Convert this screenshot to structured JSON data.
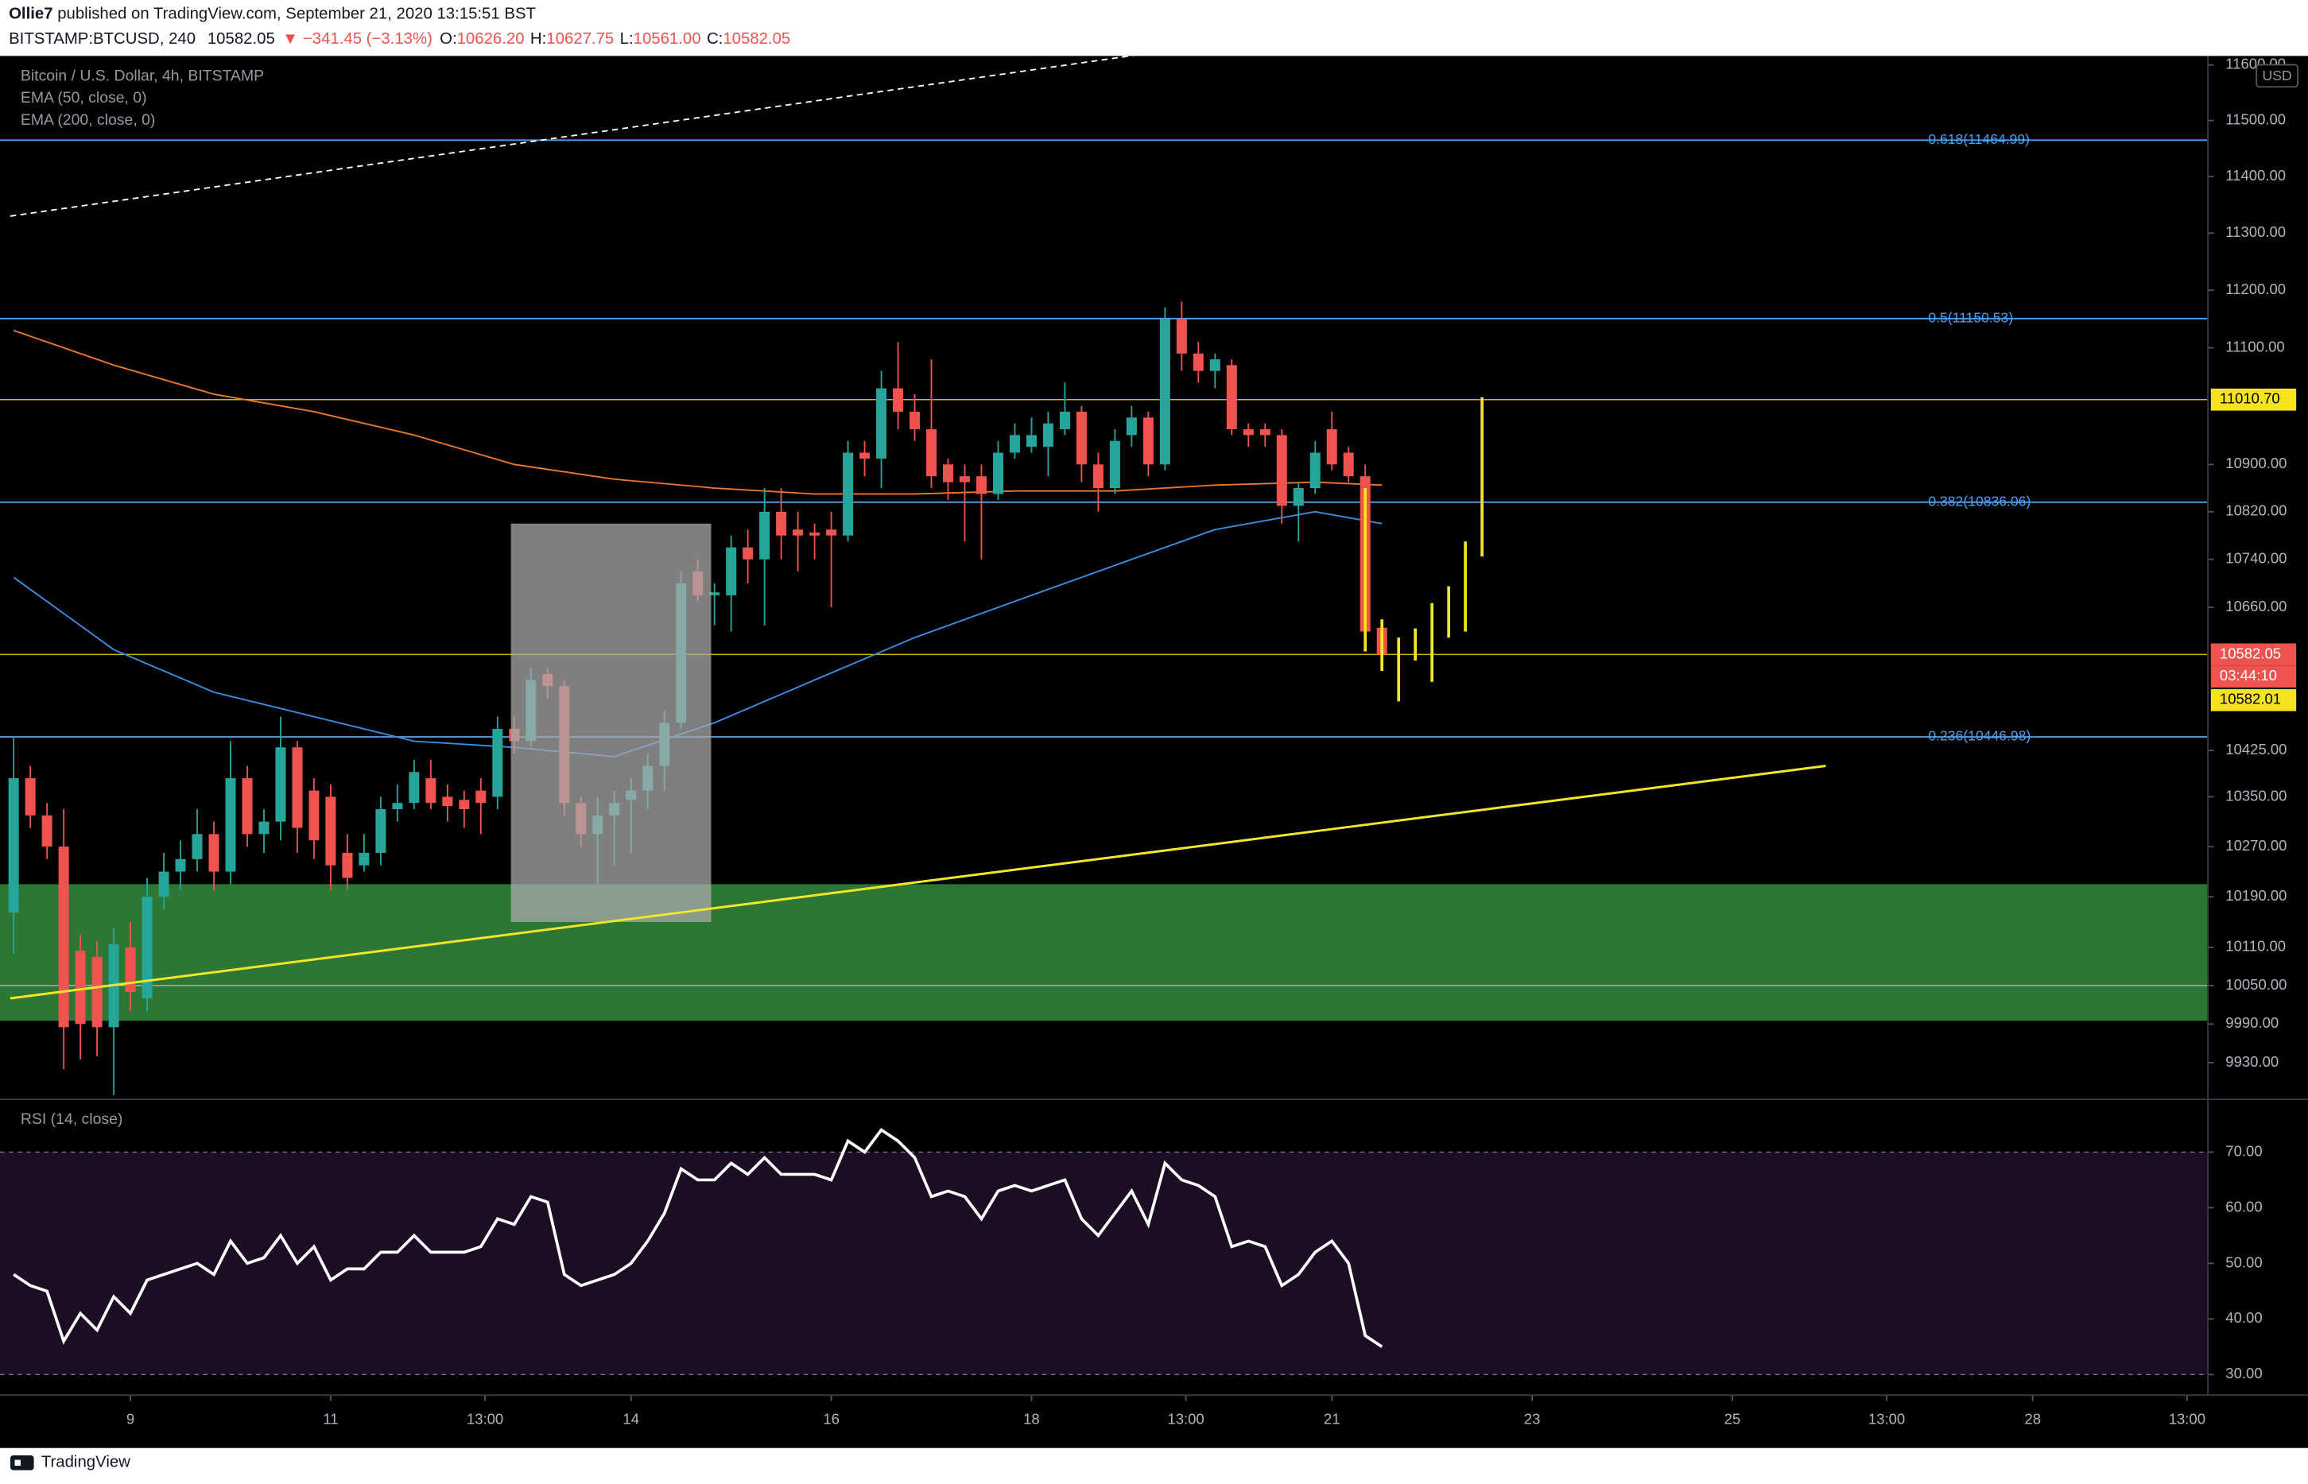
{
  "header": {
    "author": "Ollie7",
    "published": " published on TradingView.com, September 21, 2020 13:15:51 BST",
    "symbol": "BITSTAMP:BTCUSD, 240",
    "last": "10582.05",
    "change": "▼ −341.45 (−3.13%)",
    "ohlc": [
      {
        "k": "O:",
        "v": "10626.20"
      },
      {
        "k": "H:",
        "v": "10627.75"
      },
      {
        "k": "L:",
        "v": "10561.00"
      },
      {
        "k": "C:",
        "v": "10582.05"
      }
    ]
  },
  "footer": "TradingView",
  "chart_data": {
    "type": "candlestick",
    "title": "Bitcoin / U.S. Dollar, 4h, BITSTAMP",
    "currency": "USD",
    "log_scale": true,
    "up_color": "#26a69a",
    "down_color": "#ef5350",
    "x": [
      -7,
      -6,
      -5,
      -4,
      -3,
      -2,
      -1,
      0,
      1,
      2,
      3,
      4,
      5,
      6,
      7,
      8,
      9,
      10,
      11,
      12,
      13,
      14,
      15,
      16,
      17,
      18,
      19,
      20,
      21,
      22,
      23,
      24,
      25,
      26,
      27,
      28,
      29,
      30,
      31,
      32,
      33,
      34,
      35,
      36,
      37,
      38,
      39,
      40,
      41,
      42,
      43,
      44,
      45,
      46,
      47,
      48,
      49,
      50,
      51,
      52,
      53,
      54,
      55,
      56,
      57,
      58,
      59,
      60,
      61,
      62,
      63,
      64,
      65,
      66,
      67,
      68,
      69,
      70,
      71,
      72,
      73,
      74,
      75
    ],
    "open": [
      10165,
      10380,
      10320,
      10270,
      10105,
      10095,
      9985,
      10110,
      10030,
      10190,
      10230,
      10250,
      10290,
      10230,
      10380,
      10290,
      10310,
      10430,
      10360,
      10350,
      10260,
      10240,
      10260,
      10330,
      10340,
      10380,
      10350,
      10345,
      10360,
      10350,
      10460,
      10440,
      10550,
      10530,
      10340,
      10290,
      10320,
      10345,
      10360,
      10400,
      10470,
      10720,
      10680,
      10680,
      10760,
      10740,
      10820,
      10790,
      10785,
      10790,
      10780,
      10920,
      10910,
      11030,
      10990,
      10960,
      10900,
      10880,
      10880,
      10850,
      10920,
      10930,
      10930,
      10960,
      10990,
      10900,
      10860,
      10950,
      10980,
      10900,
      11150,
      11090,
      11060,
      11070,
      10960,
      10960,
      10950,
      10830,
      10860,
      10960,
      10920,
      10880,
      10626.2
    ],
    "high": [
      10447,
      10400,
      10340,
      10330,
      10130,
      10120,
      10140,
      10150,
      10220,
      10260,
      10280,
      10330,
      10310,
      10440,
      10400,
      10330,
      10480,
      10440,
      10380,
      10370,
      10290,
      10290,
      10350,
      10370,
      10410,
      10410,
      10370,
      10360,
      10380,
      10480,
      10480,
      10560,
      10560,
      10540,
      10350,
      10350,
      10360,
      10380,
      10420,
      10490,
      10720,
      10740,
      10700,
      10780,
      10790,
      10860,
      10860,
      10820,
      10800,
      10820,
      10940,
      10940,
      11060,
      11110,
      11020,
      11080,
      10910,
      10900,
      10900,
      10940,
      10970,
      10980,
      10990,
      11040,
      11000,
      10920,
      10960,
      11000,
      10990,
      11170,
      11180,
      11110,
      11090,
      11080,
      10970,
      10970,
      10960,
      10870,
      10940,
      10990,
      10930,
      10900,
      10627.75
    ],
    "low": [
      10100,
      10300,
      10250,
      9920,
      9935,
      9940,
      9880,
      10010,
      10010,
      10170,
      10200,
      10230,
      10200,
      10210,
      10270,
      10260,
      10280,
      10260,
      10250,
      10200,
      10200,
      10230,
      10240,
      10310,
      10330,
      10330,
      10310,
      10300,
      10290,
      10330,
      10420,
      10430,
      10510,
      10320,
      10270,
      10210,
      10240,
      10260,
      10330,
      10360,
      10460,
      10670,
      10630,
      10620,
      10700,
      10630,
      10740,
      10720,
      10740,
      10660,
      10770,
      10880,
      10860,
      10960,
      10940,
      10860,
      10840,
      10770,
      10740,
      10840,
      10910,
      10920,
      10880,
      10950,
      10870,
      10820,
      10850,
      10930,
      10880,
      10890,
      11060,
      11040,
      11030,
      10950,
      10930,
      10930,
      10800,
      10770,
      10850,
      10890,
      10870,
      10590,
      10561
    ],
    "close": [
      10380,
      10320,
      10270,
      9985,
      9990,
      9985,
      10115,
      10040,
      10190,
      10230,
      10250,
      10290,
      10230,
      10380,
      10290,
      10310,
      10430,
      10300,
      10280,
      10240,
      10220,
      10260,
      10330,
      10340,
      10390,
      10340,
      10335,
      10330,
      10340,
      10460,
      10440,
      10540,
      10530,
      10340,
      10290,
      10320,
      10340,
      10360,
      10400,
      10470,
      10700,
      10680,
      10685,
      10760,
      10740,
      10820,
      10780,
      10780,
      10780,
      10780,
      10920,
      10910,
      11030,
      10990,
      10960,
      10880,
      10870,
      10870,
      10850,
      10920,
      10950,
      10950,
      10970,
      10990,
      10900,
      10860,
      10940,
      10980,
      10900,
      11150,
      11090,
      11060,
      11080,
      10960,
      10950,
      10950,
      10830,
      10860,
      10920,
      10900,
      10880,
      10620,
      10582.05
    ],
    "xlim": [
      -7.2,
      124.5
    ],
    "xticks": [
      {
        "value": 0,
        "label": "9"
      },
      {
        "value": 12,
        "label": "11"
      },
      {
        "value": 21.25,
        "label": "13:00"
      },
      {
        "value": 30,
        "label": "14"
      },
      {
        "value": 42,
        "label": "16"
      },
      {
        "value": 54,
        "label": "18"
      },
      {
        "value": 63.25,
        "label": "13:00"
      },
      {
        "value": 72,
        "label": "21"
      },
      {
        "value": 84,
        "label": "23"
      },
      {
        "value": 96,
        "label": "25"
      },
      {
        "value": 105.25,
        "label": "13:00"
      },
      {
        "value": 114,
        "label": "28"
      },
      {
        "value": 123.25,
        "label": "13:00"
      }
    ],
    "ylim": [
      9878,
      11611
    ],
    "yticks": [
      {
        "value": 9930,
        "label": "9930.00"
      },
      {
        "value": 9990,
        "label": "9990.00"
      },
      {
        "value": 10050,
        "label": "10050.00"
      },
      {
        "value": 10110,
        "label": "10110.00"
      },
      {
        "value": 10190,
        "label": "10190.00"
      },
      {
        "value": 10270,
        "label": "10270.00"
      },
      {
        "value": 10350,
        "label": "10350.00"
      },
      {
        "value": 10425,
        "label": "10425.00"
      },
      {
        "value": 10660,
        "label": "10660.00"
      },
      {
        "value": 10740,
        "label": "10740.00"
      },
      {
        "value": 10820,
        "label": "10820.00"
      },
      {
        "value": 10900,
        "label": "10900.00"
      },
      {
        "value": 11100,
        "label": "11100.00"
      },
      {
        "value": 11200,
        "label": "11200.00"
      },
      {
        "value": 11300,
        "label": "11300.00"
      },
      {
        "value": 11400,
        "label": "11400.00"
      },
      {
        "value": 11500,
        "label": "11500.00"
      },
      {
        "value": 11600,
        "label": "11600.00"
      }
    ],
    "ema": [
      {
        "name": "EMA (50, close, 0)",
        "color": "#3b8fe6",
        "x": [
          -7,
          -1,
          5,
          11,
          17,
          23,
          29,
          35,
          41,
          47,
          53,
          59,
          65,
          71,
          75
        ],
        "values": [
          10710,
          10590,
          10520,
          10480,
          10440,
          10430,
          10415,
          10470,
          10540,
          10610,
          10670,
          10730,
          10790,
          10820,
          10800
        ]
      },
      {
        "name": "EMA (200, close, 0)",
        "color": "#f0782a",
        "x": [
          -7,
          -1,
          5,
          11,
          17,
          23,
          29,
          35,
          41,
          47,
          53,
          59,
          65,
          71,
          75
        ],
        "values": [
          11130,
          11070,
          11020,
          10990,
          10950,
          10900,
          10875,
          10860,
          10850,
          10850,
          10855,
          10855,
          10865,
          10870,
          10865
        ]
      }
    ],
    "fib": [
      {
        "label": "0.618(11464.99)",
        "value": 11464.99
      },
      {
        "label": "0.5(11150.53)",
        "value": 11150.53
      },
      {
        "label": "0.382(10836.06)",
        "value": 10836.06
      },
      {
        "label": "0.236(10446.98)",
        "value": 10446.98
      }
    ],
    "fib_color": "#4a9ff0",
    "hlines": [
      {
        "value": 11010.7,
        "color": "#c9b800"
      },
      {
        "value": 10582.05,
        "color": "#c9b800"
      },
      {
        "value": 10050,
        "color": "#9fb59f"
      }
    ],
    "zones": [
      {
        "from": 9995,
        "to": 10210,
        "color": "#2e7634"
      }
    ],
    "boxes": [
      {
        "x": [
          22.8,
          34.8
        ],
        "y": [
          10150,
          10800
        ],
        "color": "#a9a9a9"
      }
    ],
    "trendlines": [
      {
        "x": [
          -7.2,
          101.6
        ],
        "y": [
          10030,
          10400
        ],
        "color": "#f2e52a",
        "dash": false
      },
      {
        "x": [
          -7.2,
          61.9
        ],
        "y": [
          11330,
          11625
        ],
        "color": "#ffffff",
        "dash": true
      }
    ],
    "projection": {
      "color": "#f2e52a",
      "x": [
        74,
        75,
        76,
        77,
        78,
        79,
        80,
        81
      ],
      "high": [
        10860,
        10640,
        10610,
        10625,
        10667,
        10695,
        10770,
        11015
      ],
      "low": [
        10587,
        10555,
        10505,
        10572,
        10537,
        10610,
        10620,
        10745
      ]
    },
    "price_tags": [
      {
        "value": 11010.7,
        "label": "11010.70",
        "color": "#f5e31c",
        "text_color": "#000000"
      },
      {
        "value": 10582.05,
        "label": "10582.05",
        "color": "#ef5350",
        "text_color": "#ffffff"
      },
      {
        "value": 10582.01,
        "label": "10582.01",
        "color": "#f5e31c",
        "text_color": "#000000"
      }
    ],
    "countdown": "03:44:10",
    "rsi": {
      "title": "RSI (14, close)",
      "color": "#ffffff",
      "band_color": "#1c0c24",
      "values": [
        48,
        46,
        45,
        36,
        41,
        38,
        44,
        41,
        47,
        48,
        49,
        50,
        48,
        54,
        50,
        51,
        55,
        50,
        53,
        47,
        49,
        49,
        52,
        52,
        55,
        52,
        52,
        52,
        53,
        58,
        57,
        62,
        61,
        48,
        46,
        47,
        48,
        50,
        54,
        59,
        67,
        65,
        65,
        68,
        66,
        69,
        66,
        66,
        66,
        65,
        72,
        70,
        74,
        72,
        69,
        62,
        63,
        62,
        58,
        63,
        64,
        63,
        64,
        65,
        58,
        55,
        59,
        63,
        57,
        68,
        65,
        64,
        62,
        53,
        54,
        53,
        46,
        48,
        52,
        54,
        50,
        37,
        35
      ],
      "ylim": [
        27.1,
        78.7
      ],
      "band": [
        30,
        70
      ],
      "yticks": [
        {
          "value": 30,
          "label": "30.00"
        },
        {
          "value": 40,
          "label": "40.00"
        },
        {
          "value": 50,
          "label": "50.00"
        },
        {
          "value": 60,
          "label": "60.00"
        },
        {
          "value": 70,
          "label": "70.00"
        }
      ]
    }
  }
}
